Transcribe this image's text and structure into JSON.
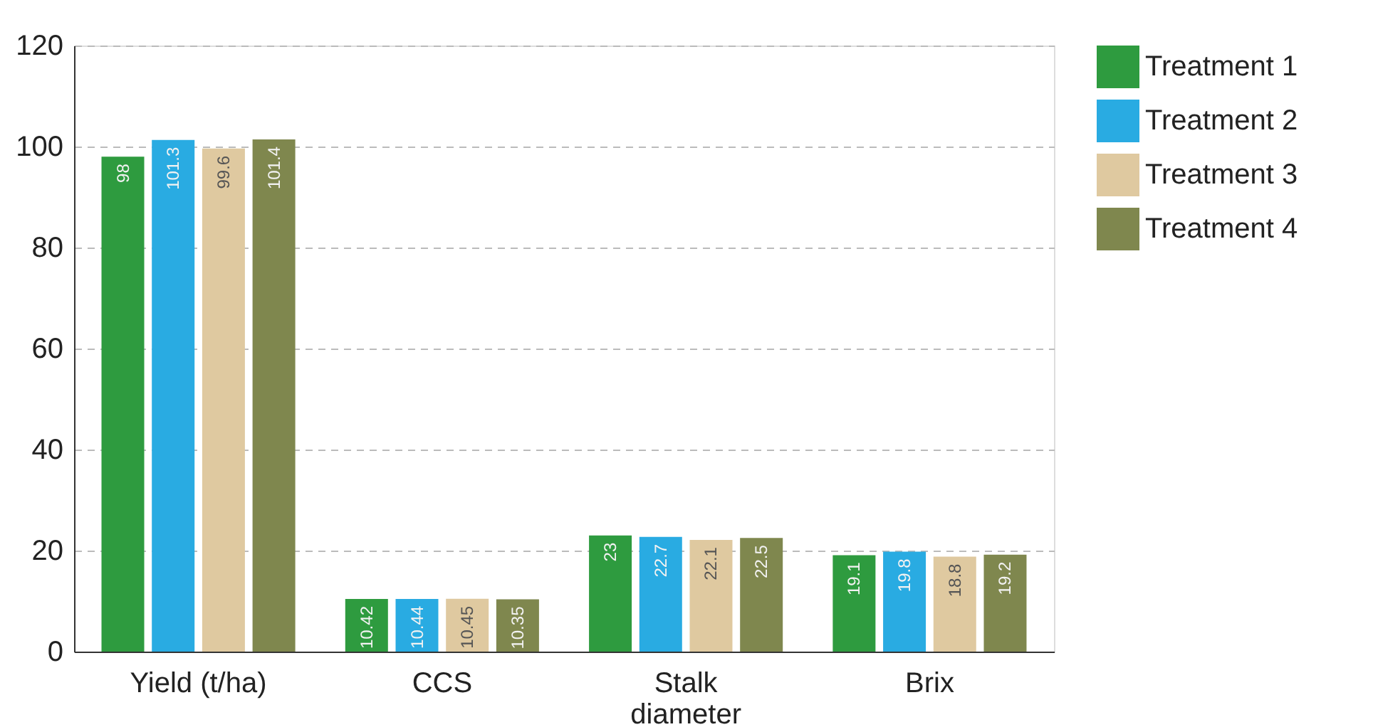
{
  "chart_data": {
    "type": "bar",
    "categories": [
      "Yield (t/ha)",
      "CCS",
      "Stalk diameter",
      "Brix"
    ],
    "series": [
      {
        "name": "Treatment 1",
        "color": "#2e9b3f",
        "values": [
          98,
          10.42,
          23,
          19.1
        ]
      },
      {
        "name": "Treatment 2",
        "color": "#29abe2",
        "values": [
          101.3,
          10.44,
          22.7,
          19.8
        ]
      },
      {
        "name": "Treatment 3",
        "color": "#dfc9a0",
        "values": [
          99.6,
          10.45,
          22.1,
          18.8
        ]
      },
      {
        "name": "Treatment 4",
        "color": "#7f874e",
        "values": [
          101.4,
          10.35,
          22.5,
          19.2
        ]
      }
    ],
    "ylim": [
      0,
      120
    ],
    "yticks": [
      0,
      20,
      40,
      60,
      80,
      100,
      120
    ],
    "grid": "y",
    "legend": "right",
    "data_labels": true
  }
}
